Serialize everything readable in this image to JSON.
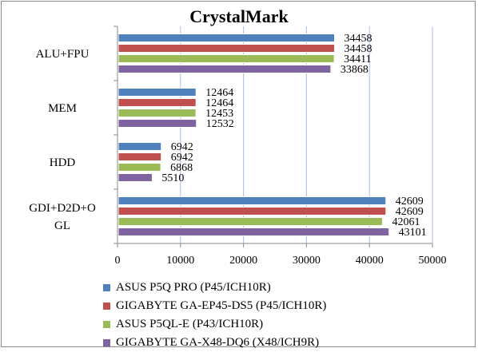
{
  "chart_data": {
    "type": "bar",
    "orientation": "horizontal",
    "title": "CrystalMark",
    "categories": [
      "ALU+FPU",
      "MEM",
      "HDD",
      "GDI+D2D+OGL"
    ],
    "category_label_lines": [
      [
        "ALU+FPU"
      ],
      [
        "MEM"
      ],
      [
        "HDD"
      ],
      [
        "GDI+D2D+O",
        "GL"
      ]
    ],
    "series": [
      {
        "name": "ASUS P5Q PRO (P45/ICH10R)",
        "color": "#4f81bd",
        "values": [
          34458,
          12464,
          6942,
          42609
        ]
      },
      {
        "name": "GIGABYTE GA-EP45-DS5 (P45/ICH10R)",
        "color": "#c0504d",
        "values": [
          34458,
          12464,
          6942,
          42609
        ]
      },
      {
        "name": "ASUS P5QL-E (P43/ICH10R)",
        "color": "#9bbb59",
        "values": [
          34411,
          12453,
          6868,
          42061
        ]
      },
      {
        "name": "GIGABYTE GA-X48-DQ6 (X48/ICH9R)",
        "color": "#8064a2",
        "values": [
          33868,
          12532,
          5510,
          43101
        ]
      }
    ],
    "xlim": [
      0,
      50000
    ],
    "xticks": [
      0,
      10000,
      20000,
      30000,
      40000,
      50000
    ],
    "grid": true,
    "data_labels": true,
    "legend_position": "bottom"
  }
}
